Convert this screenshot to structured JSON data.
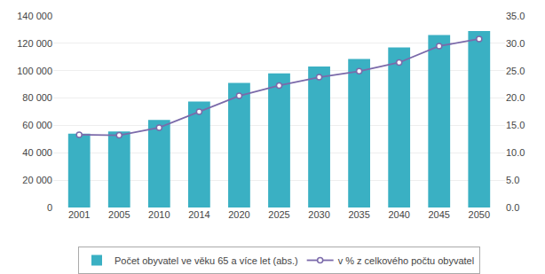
{
  "chart_data": {
    "type": "bar",
    "categories": [
      "2001",
      "2005",
      "2010",
      "2014",
      "2020",
      "2025",
      "2030",
      "2035",
      "2040",
      "2045",
      "2050"
    ],
    "series": [
      {
        "name": "Počet obyvatel ve věku 65 a více let (abs.)",
        "type": "bar",
        "color": "#3ab0c3",
        "values": [
          54000,
          55500,
          64000,
          77500,
          91000,
          98000,
          103000,
          108500,
          117000,
          126000,
          129000
        ]
      },
      {
        "name": "v % z celkového počtu obyvatel",
        "type": "line",
        "axis": "y2",
        "color": "#7b6aaa",
        "marker": "circle",
        "line_style": "solid",
        "values": [
          13.3,
          13.2,
          14.6,
          17.5,
          20.4,
          22.3,
          23.8,
          24.9,
          26.5,
          29.5,
          30.8
        ]
      }
    ],
    "ylim": [
      0,
      140000
    ],
    "yticks": [
      0,
      {
        "value": 20000,
        "label": "20 000"
      },
      {
        "value": 40000,
        "label": "40 000"
      },
      {
        "value": 60000,
        "label": "60 000"
      },
      {
        "value": 80000,
        "label": "80 000"
      },
      {
        "value": 100000,
        "label": "100 000"
      },
      {
        "value": 120000,
        "label": "120 000"
      },
      {
        "value": 140000,
        "label": "140 000"
      }
    ],
    "y2lim": [
      0,
      35.0
    ],
    "y2ticks": [
      {
        "value": 0.0,
        "label": "0.0"
      },
      {
        "value": 5.0,
        "label": "5.0"
      },
      {
        "value": 10.0,
        "label": "10.0"
      },
      {
        "value": 15.0,
        "label": "15.0"
      },
      {
        "value": 20.0,
        "label": "20.0"
      },
      {
        "value": 25.0,
        "label": "25.0"
      },
      {
        "value": 30.0,
        "label": "30.0"
      },
      {
        "value": 35.0,
        "label": "35.0"
      }
    ],
    "grid": true,
    "legend": "bottom"
  }
}
